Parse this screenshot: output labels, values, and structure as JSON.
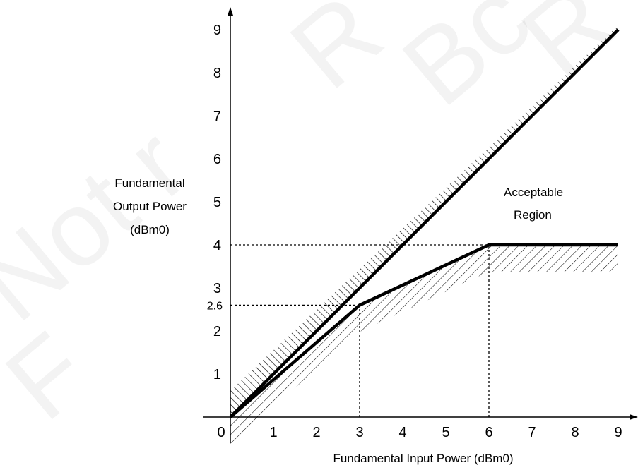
{
  "chart_data": {
    "type": "line",
    "title": "",
    "xlabel": "Fundamental Input Power (dBm0)",
    "ylabel": [
      "Fundamental",
      "Output Power",
      "(dBm0)"
    ],
    "xlim": [
      0,
      9
    ],
    "ylim": [
      0,
      9
    ],
    "x_ticks": [
      "0",
      "1",
      "2",
      "3",
      "4",
      "5",
      "6",
      "7",
      "8",
      "9"
    ],
    "y_ticks": [
      "1",
      "2",
      "3",
      "4",
      "5",
      "6",
      "7",
      "8",
      "9"
    ],
    "extra_y_tick": "2.6",
    "series": [
      {
        "values": [
          [
            0,
            0
          ],
          [
            9,
            9
          ]
        ]
      },
      {
        "values": [
          [
            0,
            0
          ],
          [
            3,
            2.6
          ],
          [
            6,
            4
          ],
          [
            9,
            4
          ]
        ]
      }
    ],
    "reference_lines": [
      {
        "from": [
          0,
          4
        ],
        "to": [
          6,
          4
        ]
      },
      {
        "from": [
          6,
          0
        ],
        "to": [
          6,
          4
        ]
      },
      {
        "from": [
          0,
          2.6
        ],
        "to": [
          3,
          2.6
        ]
      },
      {
        "from": [
          3,
          0
        ],
        "to": [
          3,
          2.6
        ]
      }
    ],
    "annotation": [
      "Acceptable",
      "Region"
    ],
    "watermark": [
      "Not r",
      "F",
      "R",
      "Bc",
      "R"
    ]
  }
}
